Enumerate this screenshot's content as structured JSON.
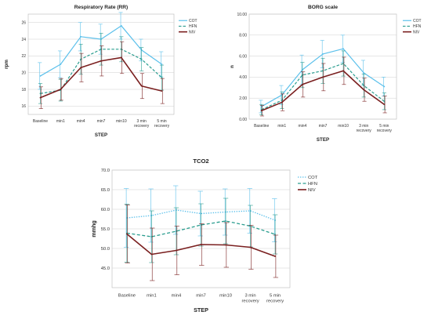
{
  "chart_data": [
    {
      "type": "line",
      "title": "Respiratory Rate  (RR)",
      "xlabel": "STEP",
      "ylabel": "rpm",
      "categories": [
        "Baseline",
        "min1",
        "min4",
        "min7",
        "min10",
        "3 min recovery",
        "5 min recovery"
      ],
      "ylim": [
        15,
        27
      ],
      "yticks": [
        16,
        18,
        20,
        22,
        24,
        26
      ],
      "ytick_labels": [
        "16",
        "18",
        "20",
        "22",
        "24",
        "26"
      ],
      "grid": true,
      "legend_position": "top-right",
      "error_bars": true,
      "series": [
        {
          "name": "COT",
          "values": [
            19.6,
            21.0,
            24.3,
            24.0,
            25.6,
            22.7,
            21.0
          ],
          "errors": [
            1.6,
            1.6,
            1.7,
            1.8,
            1.6,
            1.3,
            1.5
          ]
        },
        {
          "name": "HFN",
          "values": [
            17.5,
            17.9,
            21.6,
            22.8,
            22.8,
            21.6,
            19.4
          ],
          "errors": [
            1.2,
            1.3,
            1.8,
            1.9,
            1.5,
            1.4,
            1.5
          ]
        },
        {
          "name": "NIV",
          "values": [
            17.0,
            18.0,
            20.6,
            21.4,
            21.8,
            18.4,
            17.8
          ],
          "errors": [
            1.3,
            1.3,
            1.7,
            1.8,
            1.9,
            1.5,
            1.5
          ]
        }
      ]
    },
    {
      "type": "line",
      "title": "BORG scale",
      "xlabel": "STEP",
      "ylabel": "n",
      "categories": [
        "Baseline",
        "min1",
        "min4",
        "min7",
        "min10",
        "3 min recovery",
        "5 min recovery"
      ],
      "ylim": [
        0,
        10
      ],
      "yticks": [
        0,
        2,
        4,
        6,
        8,
        10
      ],
      "ytick_labels": [
        "0.00",
        "2.00",
        "4.00",
        "6.00",
        "8.00",
        "10.00"
      ],
      "grid": true,
      "legend_position": "top-right",
      "error_bars": true,
      "series": [
        {
          "name": "COT",
          "values": [
            1.2,
            2.3,
            4.7,
            6.2,
            6.7,
            4.4,
            3.1
          ],
          "errors": [
            0.6,
            0.9,
            1.4,
            1.3,
            1.3,
            1.2,
            0.9
          ]
        },
        {
          "name": "HFN",
          "values": [
            0.9,
            1.8,
            4.2,
            4.6,
            5.3,
            3.2,
            1.7
          ],
          "errors": [
            0.5,
            0.8,
            1.2,
            1.2,
            1.2,
            1.1,
            0.8
          ]
        },
        {
          "name": "NIV",
          "values": [
            0.8,
            1.6,
            3.3,
            4.0,
            4.6,
            2.8,
            1.4
          ],
          "errors": [
            0.5,
            0.8,
            1.2,
            1.3,
            1.3,
            1.1,
            0.8
          ]
        }
      ]
    },
    {
      "type": "line",
      "title": "TCO2",
      "xlabel": "STEP",
      "ylabel": "mmhg",
      "categories": [
        "Baseline",
        "min1",
        "min4",
        "min7",
        "min10",
        "3 min recovery",
        "5 min recovery"
      ],
      "ylim": [
        40,
        70
      ],
      "yticks": [
        45,
        50,
        55,
        60,
        65,
        70
      ],
      "ytick_labels": [
        "45.0",
        "50.0",
        "55.0",
        "60.0",
        "65.0",
        "70.0"
      ],
      "grid": true,
      "legend_position": "top-right",
      "error_bars": true,
      "series": [
        {
          "name": "COT",
          "values": [
            57.8,
            58.4,
            59.8,
            58.9,
            59.3,
            59.6,
            57.2
          ],
          "errors": [
            7.5,
            6.8,
            6.2,
            5.7,
            5.9,
            5.7,
            5.5
          ]
        },
        {
          "name": "HFN",
          "values": [
            53.9,
            53.0,
            54.4,
            56.0,
            57.0,
            55.7,
            53.6
          ],
          "errors": [
            7.4,
            6.6,
            6.0,
            5.4,
            5.8,
            5.3,
            5.0
          ]
        },
        {
          "name": "NIV",
          "values": [
            53.7,
            48.5,
            49.5,
            51.0,
            50.9,
            50.3,
            48.0
          ],
          "errors": [
            7.4,
            6.7,
            6.2,
            5.3,
            5.7,
            5.6,
            5.4
          ]
        }
      ]
    }
  ],
  "colors": {
    "COT": "#5bc0eb",
    "HFN": "#2a9d8f",
    "NIV": "#7a1f1f",
    "grid": "#cfcfcf",
    "frame": "#b8b8b8"
  }
}
